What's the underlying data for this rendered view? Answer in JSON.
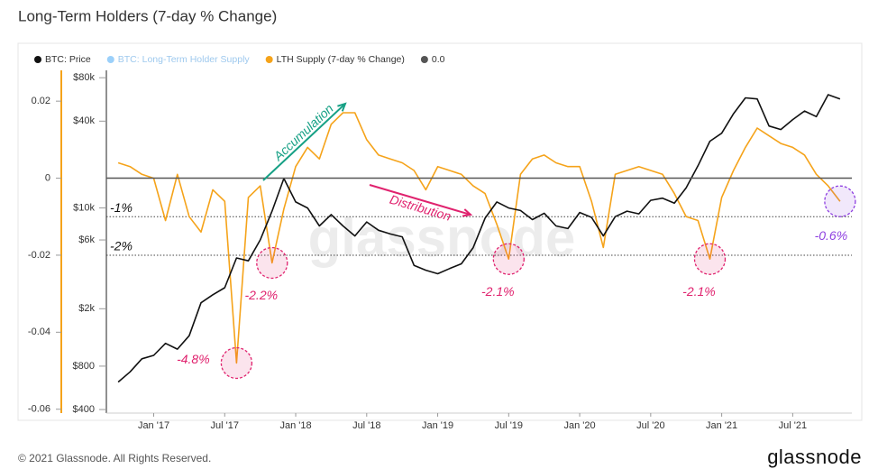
{
  "chart_data": {
    "type": "line",
    "title": "Long-Term Holders (7-day % Change)",
    "footer": "© 2021 Glassnode. All Rights Reserved.",
    "brand": "glassnode",
    "watermark": "glassnode",
    "x": [
      "2016-10",
      "2016-11",
      "2016-12",
      "2017-01",
      "2017-02",
      "2017-03",
      "2017-04",
      "2017-05",
      "2017-06",
      "2017-07",
      "2017-08",
      "2017-09",
      "2017-10",
      "2017-11",
      "2017-12",
      "2018-01",
      "2018-02",
      "2018-03",
      "2018-04",
      "2018-05",
      "2018-06",
      "2018-07",
      "2018-08",
      "2018-09",
      "2018-10",
      "2018-11",
      "2018-12",
      "2019-01",
      "2019-02",
      "2019-03",
      "2019-04",
      "2019-05",
      "2019-06",
      "2019-07",
      "2019-08",
      "2019-09",
      "2019-10",
      "2019-11",
      "2019-12",
      "2020-01",
      "2020-02",
      "2020-03",
      "2020-04",
      "2020-05",
      "2020-06",
      "2020-07",
      "2020-08",
      "2020-09",
      "2020-10",
      "2020-11",
      "2020-12",
      "2021-01",
      "2021-02",
      "2021-03",
      "2021-04",
      "2021-05",
      "2021-06",
      "2021-07",
      "2021-08",
      "2021-09",
      "2021-10",
      "2021-11"
    ],
    "xlim": [
      "2016-09",
      "2021-12"
    ],
    "xticks": [
      {
        "value": "2017-01",
        "label": "Jan '17"
      },
      {
        "value": "2017-07",
        "label": "Jul '17"
      },
      {
        "value": "2018-01",
        "label": "Jan '18"
      },
      {
        "value": "2018-07",
        "label": "Jul '18"
      },
      {
        "value": "2019-01",
        "label": "Jan '19"
      },
      {
        "value": "2019-07",
        "label": "Jul '19"
      },
      {
        "value": "2020-01",
        "label": "Jan '20"
      },
      {
        "value": "2020-07",
        "label": "Jul '20"
      },
      {
        "value": "2021-01",
        "label": "Jan '21"
      },
      {
        "value": "2021-07",
        "label": "Jul '21"
      }
    ],
    "ylim": [
      -0.061,
      0.028
    ],
    "yticks": [
      0.02,
      0,
      -0.02,
      -0.04,
      -0.06
    ],
    "y2lim": [
      378,
      90000
    ],
    "y2scale": "log",
    "y2ticks": [
      {
        "value": 400,
        "label": "$400"
      },
      {
        "value": 800,
        "label": "$800"
      },
      {
        "value": 2000,
        "label": "$2k"
      },
      {
        "value": 6000,
        "label": "$6k"
      },
      {
        "value": 10000,
        "label": "$10k"
      },
      {
        "value": 40000,
        "label": "$40k"
      },
      {
        "value": 80000,
        "label": "$80k"
      }
    ],
    "series": [
      {
        "name": "BTC: Price",
        "color": "#111111",
        "axis": "y2",
        "values": [
          620,
          730,
          900,
          950,
          1150,
          1050,
          1300,
          2200,
          2500,
          2800,
          4500,
          4300,
          6000,
          9500,
          16000,
          11000,
          10000,
          7500,
          9000,
          7500,
          6400,
          8000,
          7000,
          6600,
          6300,
          4000,
          3700,
          3500,
          3800,
          4100,
          5300,
          8500,
          11000,
          10000,
          9600,
          8300,
          9200,
          7500,
          7200,
          9300,
          8600,
          6400,
          8700,
          9500,
          9100,
          11300,
          11700,
          10800,
          13800,
          19600,
          29000,
          33000,
          45000,
          58000,
          57000,
          37000,
          35000,
          41000,
          47000,
          43000,
          61000,
          57000
        ]
      },
      {
        "name": "LTH Supply (7-day % Change)",
        "color": "#f5a31a",
        "values": [
          0.004,
          0.003,
          0.001,
          0.0,
          -0.011,
          0.001,
          -0.01,
          -0.014,
          -0.003,
          -0.006,
          -0.048,
          -0.005,
          -0.002,
          -0.022,
          -0.008,
          0.003,
          0.008,
          0.005,
          0.014,
          0.017,
          0.017,
          0.01,
          0.006,
          0.005,
          0.004,
          0.002,
          -0.003,
          0.003,
          0.002,
          0.001,
          -0.002,
          -0.004,
          -0.012,
          -0.021,
          0.001,
          0.005,
          0.006,
          0.004,
          0.003,
          0.003,
          -0.006,
          -0.018,
          0.001,
          0.002,
          0.003,
          0.002,
          0.001,
          -0.004,
          -0.01,
          -0.011,
          -0.021,
          -0.005,
          0.002,
          0.008,
          0.013,
          0.011,
          0.009,
          0.008,
          0.006,
          0.001,
          -0.002,
          -0.006
        ]
      }
    ],
    "extra_legend": [
      {
        "name": "BTC: Long-Term Holder Supply",
        "color": "#2196f3"
      }
    ],
    "zero_line": {
      "name": "0.0",
      "value": 0,
      "color": "#555555"
    },
    "reference_lines": [
      {
        "value": -0.01,
        "label": "-1%"
      },
      {
        "value": -0.02,
        "label": "-2%"
      }
    ],
    "annotations": [
      "-4.8%",
      "-2.2%",
      "-2.1%",
      "-2.1%",
      "-0.6%"
    ],
    "phases": [
      "Accumulation",
      "Distribution"
    ]
  }
}
